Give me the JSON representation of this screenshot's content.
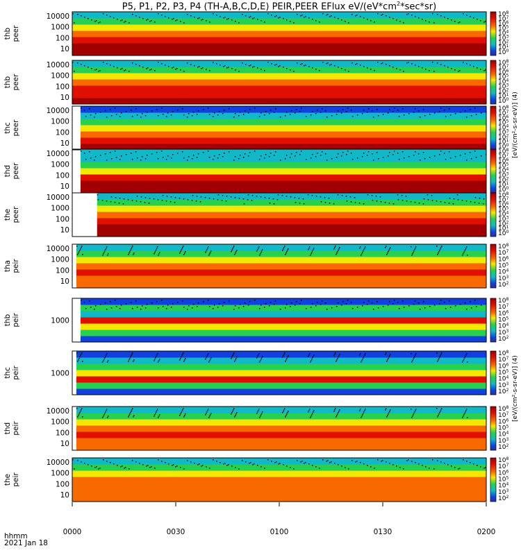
{
  "title_text": "P5, P1, P2, P3, P4 (TH-A,B,C,D,E) PEIR,PEER EFlux eV/(eV*cm",
  "title_sup": "2",
  "title_end": "*sec*sr)",
  "x_label_line1": "hhmm",
  "x_label_line2": "2021 Jan 18",
  "colorbar_unit_peer": "[eV/(cm²-s-sr-eV)] (4)",
  "colorbar_unit_peir": "[eV/(cm²-s-sr-eV)] (4)",
  "colors": {
    "deep_red": "#a00000",
    "red": "#e01000",
    "orange": "#f86a00",
    "yellow": "#f4e800",
    "green": "#28d050",
    "cyan": "#10b8c8",
    "blue": "#1040e0",
    "black": "#000000"
  },
  "chart_data": {
    "type": "heatmap",
    "x_ticks": [
      "0000",
      "0030",
      "0100",
      "0130",
      "0200"
    ],
    "x_range": [
      "0000",
      "0200"
    ],
    "colorbar_ticks_peer": [
      "10^8",
      "10^7",
      "10^6",
      "10^5",
      "10^4",
      "10^3",
      "10^2",
      "10^1",
      "10^0"
    ],
    "colorbar_ticks_peir": [
      "10^8",
      "10^7",
      "10^6",
      "10^5",
      "10^4",
      "10^3",
      "10^2"
    ],
    "panels": [
      {
        "label1": "thb",
        "label2": "peer",
        "yticks": [
          "10000",
          "1000",
          "100",
          "10"
        ],
        "bands": [
          "#a00000",
          "#a00000",
          "#e01000",
          "#f86a00",
          "#f4e800",
          "#28d050",
          "#10b8c8"
        ],
        "start": 0.0,
        "colorbar": "peer"
      },
      {
        "label1": "thb",
        "label2": "peer",
        "yticks": [
          "10000",
          "1000",
          "100",
          "10"
        ],
        "bands": [
          "#a00000",
          "#e01000",
          "#e01000",
          "#f86a00",
          "#f4e800",
          "#28d050",
          "#10b8c8"
        ],
        "start": 0.0,
        "colorbar": "peer"
      },
      {
        "label1": "thc",
        "label2": "peer",
        "yticks": [
          "10000",
          "1000",
          "100",
          "10"
        ],
        "bands": [
          "#a00000",
          "#e01000",
          "#f86a00",
          "#f4e800",
          "#28d050",
          "#10b8c8",
          "#1040e0"
        ],
        "start": 0.02,
        "colorbar": "peer"
      },
      {
        "label1": "thd",
        "label2": "peer",
        "yticks": [
          "10000",
          "1000",
          "100",
          "10"
        ],
        "bands": [
          "#a00000",
          "#a00000",
          "#e01000",
          "#f4e800",
          "#28d050",
          "#10b8c8",
          "#10b8c8"
        ],
        "start": 0.02,
        "colorbar": "peer"
      },
      {
        "label1": "the",
        "label2": "peer",
        "yticks": [
          "10000",
          "1000",
          "100",
          "10"
        ],
        "bands": [
          "#a00000",
          "#a00000",
          "#e01000",
          "#f86a00",
          "#f4e800",
          "#28d050",
          "#10b8c8"
        ],
        "start": 0.06,
        "colorbar": "peer"
      },
      {
        "label1": "tha",
        "label2": "peir",
        "yticks": [
          "10000",
          "1000",
          "100",
          "10"
        ],
        "bands": [
          "#f86a00",
          "#f86a00",
          "#e01000",
          "#f86a00",
          "#f4e800",
          "#28d050",
          "#10b8c8"
        ],
        "start": 0.01,
        "colorbar": "peir"
      },
      {
        "label1": "thb",
        "label2": "peir",
        "yticks": [
          "1000"
        ],
        "bands": [
          "#1040e0",
          "#28d050",
          "#f4e800",
          "#e01000",
          "#10b8c8",
          "#28d050",
          "#1040e0"
        ],
        "start": 0.02,
        "colorbar": "peir"
      },
      {
        "label1": "thc",
        "label2": "peir",
        "yticks": [
          "1000"
        ],
        "bands": [
          "#1040e0",
          "#28d050",
          "#e01000",
          "#f4e800",
          "#28d050",
          "#10b8c8",
          "#1040e0"
        ],
        "start": 0.01,
        "colorbar": "peir"
      },
      {
        "label1": "thd",
        "label2": "peir",
        "yticks": [
          "10000",
          "1000",
          "100",
          "10"
        ],
        "bands": [
          "#f86a00",
          "#f86a00",
          "#e01000",
          "#f86a00",
          "#f4e800",
          "#28d050",
          "#10b8c8"
        ],
        "start": 0.01,
        "colorbar": "peir"
      },
      {
        "label1": "the",
        "label2": "peir",
        "yticks": [
          "10000",
          "1000",
          "100",
          "10"
        ],
        "bands": [
          "#f86a00",
          "#f86a00",
          "#f86a00",
          "#f86a00",
          "#f4e800",
          "#28d050",
          "#10b8c8"
        ],
        "start": 0.0,
        "colorbar": "peir"
      }
    ]
  }
}
